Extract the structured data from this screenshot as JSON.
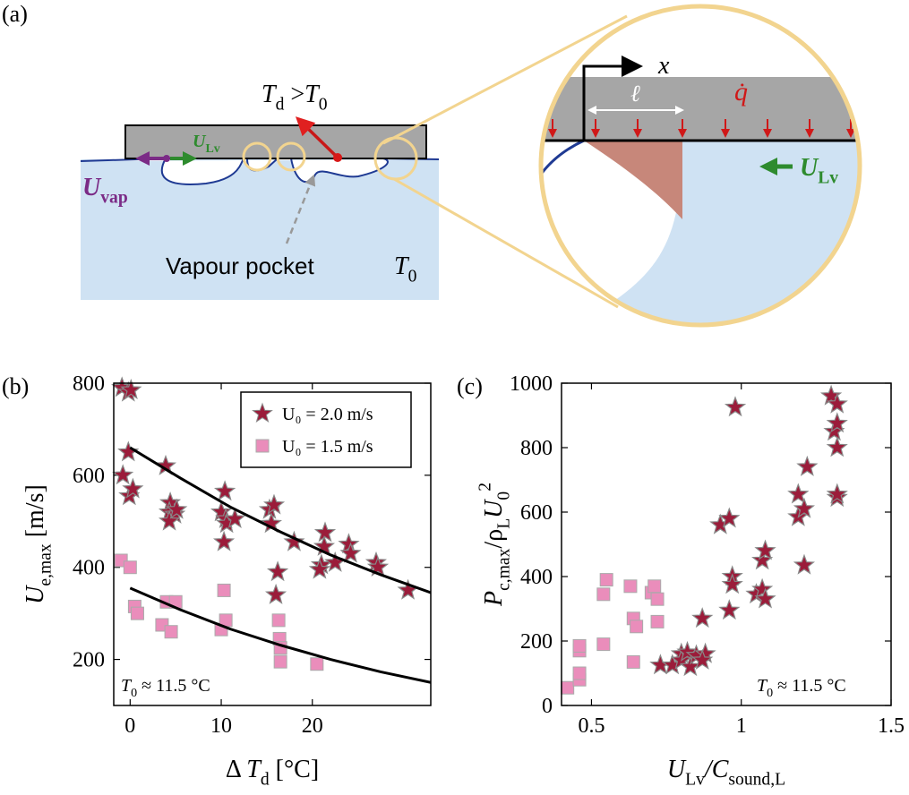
{
  "diagram": {
    "panel_label": "(a)",
    "td_label": [
      "T",
      "d",
      " >",
      "T",
      "0"
    ],
    "ulv_small": [
      "U",
      "Lv"
    ],
    "uvap": [
      "U",
      "vap"
    ],
    "pocket": "Vapour pocket",
    "t0": [
      "T",
      "0"
    ],
    "x_axis": "x",
    "ell": "ℓ",
    "qdot": "q̇",
    "ulv_large": [
      "U",
      "Lv"
    ]
  },
  "chart_data": [
    {
      "type": "scatter",
      "panel_label": "(b)",
      "xlabel": [
        "Δ ",
        "T",
        "d",
        " [°C]"
      ],
      "ylabel": [
        "U",
        "e,max",
        " [m/s]"
      ],
      "annotation": [
        "T",
        "0",
        " ≈ 11.5 °C"
      ],
      "xlim": [
        -1.8,
        33
      ],
      "ylim": [
        100,
        800
      ],
      "xticks": [
        0,
        10,
        20
      ],
      "yticks": [
        200,
        400,
        600,
        800
      ],
      "grid": false,
      "legend": "upper right",
      "series": [
        {
          "name": "U₀ = 2.0 m/s",
          "marker": "star",
          "color": "#9b1c3a",
          "x": [
            -0.9,
            -0.2,
            0.1,
            -0.2,
            -0.8,
            -0.1,
            0.3,
            3.9,
            4.4,
            4.3,
            4.9,
            4.3,
            5.1,
            10.4,
            10,
            10.5,
            10.3,
            10.6,
            11.5,
            15.3,
            15.8,
            15.5,
            16.2,
            16,
            18,
            21,
            21.4,
            21.3,
            20.8,
            22.5,
            24,
            24.2,
            27,
            27.2,
            30.5
          ],
          "values": [
            790,
            780,
            785,
            650,
            600,
            555,
            570,
            620,
            540,
            520,
            515,
            500,
            525,
            565,
            520,
            505,
            455,
            495,
            505,
            525,
            535,
            495,
            390,
            340,
            455,
            405,
            475,
            445,
            395,
            410,
            450,
            430,
            410,
            400,
            350
          ]
        },
        {
          "name": "U₀ = 1.5 m/s",
          "marker": "square",
          "color": "#ea8dbb",
          "x": [
            -1,
            0,
            0.5,
            0.8,
            3.5,
            4,
            4.5,
            5,
            10,
            10.3,
            10.5,
            16.3,
            16.4,
            16.5,
            16.5,
            20.5
          ],
          "values": [
            415,
            400,
            315,
            300,
            275,
            325,
            260,
            325,
            265,
            350,
            285,
            285,
            245,
            225,
            195,
            190
          ]
        },
        {
          "marker": "line",
          "color": "#000000",
          "x": [
            0,
            5.5,
            11,
            16.5,
            22,
            27.5,
            33
          ],
          "values": [
            660,
            594,
            531,
            477,
            427,
            384,
            345
          ]
        },
        {
          "marker": "line",
          "color": "#000000",
          "x": [
            0,
            5.5,
            11,
            16.5,
            22,
            27.5,
            33
          ],
          "values": [
            355,
            308,
            266,
            231,
            200,
            173,
            150
          ]
        }
      ]
    },
    {
      "type": "scatter",
      "panel_label": "(c)",
      "xlabel": [
        "U",
        "Lv",
        "/C",
        "sound,L"
      ],
      "ylabel": [
        "P",
        "c,max",
        "/ρ",
        "L",
        "U",
        "0",
        "2"
      ],
      "annotation": [
        "T",
        "0",
        " ≈ 11.5 °C"
      ],
      "xlim": [
        0.4,
        1.5
      ],
      "ylim": [
        0,
        1000
      ],
      "xticks": [
        0.5,
        1,
        1.5
      ],
      "yticks": [
        0,
        200,
        400,
        600,
        800,
        1000
      ],
      "grid": false,
      "series": [
        {
          "marker": "square",
          "color": "#ea8dbb",
          "x": [
            0.42,
            0.46,
            0.46,
            0.46,
            0.46,
            0.54,
            0.54,
            0.55,
            0.63,
            0.64,
            0.64,
            0.65,
            0.7,
            0.71,
            0.72,
            0.72
          ],
          "values": [
            55,
            80,
            100,
            170,
            185,
            190,
            345,
            390,
            370,
            270,
            135,
            245,
            350,
            370,
            330,
            260
          ]
        },
        {
          "marker": "star",
          "color": "#9b1c3a",
          "x": [
            0.73,
            0.77,
            0.8,
            0.8,
            0.82,
            0.83,
            0.85,
            0.87,
            0.88,
            0.87,
            0.93,
            0.96,
            0.96,
            0.97,
            0.97,
            0.98,
            1.05,
            1.07,
            1.07,
            1.08,
            1.08,
            1.19,
            1.19,
            1.21,
            1.21,
            1.22,
            1.3,
            1.31,
            1.32,
            1.32,
            1.32,
            1.32,
            1.32
          ],
          "values": [
            125,
            125,
            160,
            140,
            165,
            120,
            155,
            270,
            160,
            140,
            560,
            580,
            295,
            400,
            375,
            925,
            345,
            360,
            450,
            330,
            480,
            655,
            585,
            610,
            435,
            740,
            960,
            850,
            935,
            800,
            875,
            645,
            655
          ]
        }
      ]
    }
  ]
}
